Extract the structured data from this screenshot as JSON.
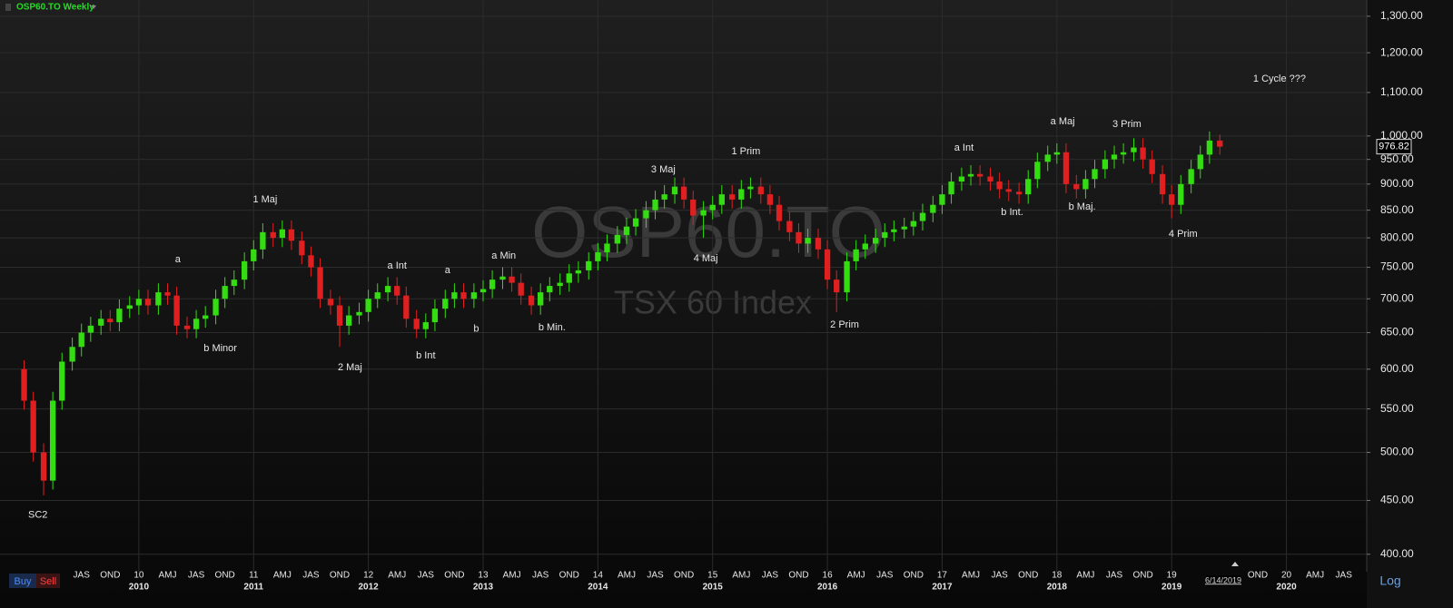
{
  "chart_data": {
    "type": "candlestick",
    "title": "OSP60.TO Weekly",
    "watermark": "OSP60.TO",
    "subtitle": "TSX 60 Index",
    "log_scale": true,
    "grid": true,
    "up_color": "#33dd11",
    "down_color": "#e02020",
    "xlim": [
      2008.79,
      2020.7
    ],
    "ylim": [
      385,
      1347
    ],
    "yticks": [
      {
        "value": 400,
        "label": "400.00"
      },
      {
        "value": 450,
        "label": "450.00"
      },
      {
        "value": 500,
        "label": "500.00"
      },
      {
        "value": 550,
        "label": "550.00"
      },
      {
        "value": 600,
        "label": "600.00"
      },
      {
        "value": 650,
        "label": "650.00"
      },
      {
        "value": 700,
        "label": "700.00"
      },
      {
        "value": 750,
        "label": "750.00"
      },
      {
        "value": 800,
        "label": "800.00"
      },
      {
        "value": 850,
        "label": "850.00"
      },
      {
        "value": 900,
        "label": "900.00"
      },
      {
        "value": 950,
        "label": "950.00"
      },
      {
        "value": 1000,
        "label": "1,000.00"
      },
      {
        "value": 1100,
        "label": "1,100.00"
      },
      {
        "value": 1200,
        "label": "1,200.00"
      },
      {
        "value": 1300,
        "label": "1,300.00"
      }
    ],
    "xticks": [
      {
        "value": 2009.5,
        "label": "JAS"
      },
      {
        "value": 2009.75,
        "label": "OND"
      },
      {
        "value": 2010,
        "label": "10"
      },
      {
        "value": 2010.25,
        "label": "AMJ"
      },
      {
        "value": 2010.5,
        "label": "JAS"
      },
      {
        "value": 2010.75,
        "label": "OND"
      },
      {
        "value": 2011,
        "label": "11"
      },
      {
        "value": 2011.25,
        "label": "AMJ"
      },
      {
        "value": 2011.5,
        "label": "JAS"
      },
      {
        "value": 2011.75,
        "label": "OND"
      },
      {
        "value": 2012,
        "label": "12"
      },
      {
        "value": 2012.25,
        "label": "AMJ"
      },
      {
        "value": 2012.5,
        "label": "JAS"
      },
      {
        "value": 2012.75,
        "label": "OND"
      },
      {
        "value": 2013,
        "label": "13"
      },
      {
        "value": 2013.25,
        "label": "AMJ"
      },
      {
        "value": 2013.5,
        "label": "JAS"
      },
      {
        "value": 2013.75,
        "label": "OND"
      },
      {
        "value": 2014,
        "label": "14"
      },
      {
        "value": 2014.25,
        "label": "AMJ"
      },
      {
        "value": 2014.5,
        "label": "JAS"
      },
      {
        "value": 2014.75,
        "label": "OND"
      },
      {
        "value": 2015,
        "label": "15"
      },
      {
        "value": 2015.25,
        "label": "AMJ"
      },
      {
        "value": 2015.5,
        "label": "JAS"
      },
      {
        "value": 2015.75,
        "label": "OND"
      },
      {
        "value": 2016,
        "label": "16"
      },
      {
        "value": 2016.25,
        "label": "AMJ"
      },
      {
        "value": 2016.5,
        "label": "JAS"
      },
      {
        "value": 2016.75,
        "label": "OND"
      },
      {
        "value": 2017,
        "label": "17"
      },
      {
        "value": 2017.25,
        "label": "AMJ"
      },
      {
        "value": 2017.5,
        "label": "JAS"
      },
      {
        "value": 2017.75,
        "label": "OND"
      },
      {
        "value": 2018,
        "label": "18"
      },
      {
        "value": 2018.25,
        "label": "AMJ"
      },
      {
        "value": 2018.5,
        "label": "JAS"
      },
      {
        "value": 2018.75,
        "label": "OND"
      },
      {
        "value": 2019,
        "label": "19"
      },
      {
        "value": 2019.75,
        "label": "OND"
      },
      {
        "value": 2020,
        "label": "20"
      },
      {
        "value": 2020.25,
        "label": "AMJ"
      },
      {
        "value": 2020.5,
        "label": "JAS"
      }
    ],
    "year_labels": [
      {
        "value": 2010,
        "label": "2010"
      },
      {
        "value": 2011,
        "label": "2011"
      },
      {
        "value": 2012,
        "label": "2012"
      },
      {
        "value": 2013,
        "label": "2013"
      },
      {
        "value": 2014,
        "label": "2014"
      },
      {
        "value": 2015,
        "label": "2015"
      },
      {
        "value": 2016,
        "label": "2016"
      },
      {
        "value": 2017,
        "label": "2017"
      },
      {
        "value": 2018,
        "label": "2018"
      },
      {
        "value": 2019,
        "label": "2019"
      },
      {
        "value": 2020,
        "label": "2020"
      }
    ],
    "x": [
      2009.0,
      2009.08,
      2009.17,
      2009.25,
      2009.33,
      2009.42,
      2009.5,
      2009.58,
      2009.67,
      2009.75,
      2009.83,
      2009.92,
      2010.0,
      2010.08,
      2010.17,
      2010.25,
      2010.33,
      2010.42,
      2010.5,
      2010.58,
      2010.67,
      2010.75,
      2010.83,
      2010.92,
      2011.0,
      2011.08,
      2011.17,
      2011.25,
      2011.33,
      2011.42,
      2011.5,
      2011.58,
      2011.67,
      2011.75,
      2011.83,
      2011.92,
      2012.0,
      2012.08,
      2012.17,
      2012.25,
      2012.33,
      2012.42,
      2012.5,
      2012.58,
      2012.67,
      2012.75,
      2012.83,
      2012.92,
      2013.0,
      2013.08,
      2013.17,
      2013.25,
      2013.33,
      2013.42,
      2013.5,
      2013.58,
      2013.67,
      2013.75,
      2013.83,
      2013.92,
      2014.0,
      2014.08,
      2014.17,
      2014.25,
      2014.33,
      2014.42,
      2014.5,
      2014.58,
      2014.67,
      2014.75,
      2014.83,
      2014.92,
      2015.0,
      2015.08,
      2015.17,
      2015.25,
      2015.33,
      2015.42,
      2015.5,
      2015.58,
      2015.67,
      2015.75,
      2015.83,
      2015.92,
      2016.0,
      2016.08,
      2016.17,
      2016.25,
      2016.33,
      2016.42,
      2016.5,
      2016.58,
      2016.67,
      2016.75,
      2016.83,
      2016.92,
      2017.0,
      2017.08,
      2017.17,
      2017.25,
      2017.33,
      2017.42,
      2017.5,
      2017.58,
      2017.67,
      2017.75,
      2017.83,
      2017.92,
      2018.0,
      2018.08,
      2018.17,
      2018.25,
      2018.33,
      2018.42,
      2018.5,
      2018.58,
      2018.67,
      2018.75,
      2018.83,
      2018.92,
      2019.0,
      2019.08,
      2019.17,
      2019.25,
      2019.33,
      2019.42
    ],
    "open": [
      600,
      560,
      500,
      470,
      560,
      610,
      630,
      650,
      660,
      670,
      665,
      685,
      690,
      700,
      690,
      710,
      705,
      660,
      655,
      670,
      675,
      700,
      720,
      730,
      760,
      780,
      810,
      800,
      815,
      795,
      770,
      750,
      700,
      690,
      660,
      675,
      680,
      700,
      710,
      720,
      705,
      670,
      655,
      665,
      685,
      700,
      710,
      700,
      710,
      715,
      730,
      735,
      725,
      705,
      690,
      710,
      720,
      725,
      740,
      745,
      760,
      775,
      790,
      805,
      820,
      835,
      850,
      870,
      880,
      895,
      870,
      840,
      850,
      860,
      880,
      870,
      890,
      895,
      880,
      860,
      830,
      810,
      790,
      800,
      780,
      730,
      710,
      760,
      780,
      790,
      800,
      810,
      815,
      820,
      830,
      845,
      860,
      880,
      905,
      915,
      920,
      915,
      905,
      890,
      885,
      880,
      910,
      945,
      960,
      965,
      900,
      890,
      910,
      930,
      950,
      960,
      965,
      975,
      950,
      920,
      880,
      860,
      900,
      930,
      960,
      990
    ],
    "high": [
      612,
      571,
      510,
      571,
      622,
      643,
      663,
      673,
      683,
      683,
      699,
      704,
      714,
      714,
      724,
      724,
      719,
      673,
      683,
      689,
      714,
      734,
      745,
      775,
      796,
      826,
      826,
      831,
      831,
      811,
      785,
      765,
      714,
      704,
      689,
      694,
      714,
      724,
      734,
      734,
      719,
      683,
      678,
      699,
      714,
      724,
      724,
      724,
      729,
      745,
      750,
      750,
      740,
      719,
      724,
      734,
      740,
      755,
      760,
      775,
      791,
      806,
      821,
      836,
      852,
      867,
      887,
      898,
      913,
      913,
      887,
      867,
      877,
      898,
      898,
      908,
      913,
      913,
      898,
      877,
      847,
      826,
      816,
      816,
      796,
      745,
      775,
      796,
      806,
      816,
      826,
      831,
      836,
      847,
      862,
      877,
      898,
      923,
      933,
      938,
      938,
      933,
      923,
      908,
      903,
      928,
      964,
      979,
      984,
      984,
      918,
      928,
      949,
      969,
      979,
      984,
      995,
      995,
      969,
      938,
      898,
      918,
      949,
      979,
      1010,
      1003
    ],
    "low": [
      549,
      490,
      455,
      461,
      549,
      598,
      617,
      637,
      647,
      652,
      652,
      671,
      676,
      676,
      676,
      691,
      647,
      642,
      642,
      657,
      662,
      686,
      706,
      715,
      745,
      764,
      784,
      784,
      779,
      755,
      735,
      686,
      676,
      630,
      647,
      662,
      666,
      686,
      696,
      691,
      657,
      642,
      642,
      652,
      671,
      686,
      686,
      686,
      696,
      701,
      715,
      711,
      691,
      676,
      676,
      696,
      706,
      711,
      725,
      730,
      745,
      760,
      774,
      789,
      804,
      818,
      833,
      853,
      862,
      853,
      823,
      800,
      833,
      843,
      853,
      853,
      872,
      862,
      843,
      813,
      794,
      774,
      774,
      764,
      715,
      680,
      696,
      745,
      764,
      774,
      784,
      794,
      799,
      804,
      813,
      828,
      843,
      862,
      887,
      897,
      897,
      887,
      872,
      867,
      862,
      862,
      892,
      926,
      941,
      882,
      872,
      872,
      892,
      911,
      931,
      941,
      946,
      931,
      902,
      862,
      835,
      843,
      882,
      911,
      941,
      960
    ],
    "close": [
      560,
      500,
      470,
      560,
      610,
      630,
      650,
      660,
      670,
      665,
      685,
      690,
      700,
      690,
      710,
      705,
      660,
      655,
      670,
      675,
      700,
      720,
      730,
      760,
      780,
      810,
      800,
      815,
      795,
      770,
      750,
      700,
      690,
      660,
      675,
      680,
      700,
      710,
      720,
      705,
      670,
      655,
      665,
      685,
      700,
      710,
      700,
      710,
      715,
      730,
      735,
      725,
      705,
      690,
      710,
      720,
      725,
      740,
      745,
      760,
      775,
      790,
      805,
      820,
      835,
      850,
      870,
      880,
      895,
      870,
      840,
      850,
      860,
      880,
      870,
      890,
      895,
      880,
      860,
      830,
      810,
      790,
      800,
      780,
      730,
      710,
      760,
      780,
      790,
      800,
      810,
      815,
      820,
      830,
      845,
      860,
      880,
      905,
      915,
      920,
      915,
      905,
      890,
      885,
      880,
      910,
      945,
      960,
      965,
      900,
      890,
      910,
      930,
      950,
      960,
      965,
      975,
      950,
      920,
      880,
      860,
      900,
      930,
      960,
      990,
      976.82
    ],
    "annotations": [
      {
        "text": "SC2",
        "x": 2009.12,
        "y": 436
      },
      {
        "text": "a",
        "x": 2010.34,
        "y": 763
      },
      {
        "text": "b Minor",
        "x": 2010.71,
        "y": 628
      },
      {
        "text": "1 Maj",
        "x": 2011.1,
        "y": 870
      },
      {
        "text": "2 Maj",
        "x": 2011.84,
        "y": 602
      },
      {
        "text": "a Int",
        "x": 2012.25,
        "y": 752
      },
      {
        "text": "b Int",
        "x": 2012.5,
        "y": 618
      },
      {
        "text": "a",
        "x": 2012.69,
        "y": 745
      },
      {
        "text": "b",
        "x": 2012.94,
        "y": 655
      },
      {
        "text": "a Min",
        "x": 2013.18,
        "y": 769
      },
      {
        "text": "b Min.",
        "x": 2013.6,
        "y": 657
      },
      {
        "text": "3 Maj",
        "x": 2014.57,
        "y": 929
      },
      {
        "text": "4 Maj",
        "x": 2014.94,
        "y": 764
      },
      {
        "text": "1 Prim",
        "x": 2015.29,
        "y": 966
      },
      {
        "text": "2 Prim",
        "x": 2016.15,
        "y": 661
      },
      {
        "text": "a Int",
        "x": 2017.19,
        "y": 974
      },
      {
        "text": "b Int.",
        "x": 2017.61,
        "y": 846
      },
      {
        "text": "a Maj",
        "x": 2018.05,
        "y": 1032
      },
      {
        "text": "b Maj.",
        "x": 2018.22,
        "y": 856
      },
      {
        "text": "3 Prim",
        "x": 2018.61,
        "y": 1026
      },
      {
        "text": "4 Prim",
        "x": 2019.1,
        "y": 806
      },
      {
        "text": "1 Cycle ???",
        "x": 2019.94,
        "y": 1133
      }
    ],
    "last_date": "6/14/2019",
    "scale_button": "Log",
    "buttons": [
      "Buy",
      "Sell"
    ]
  }
}
